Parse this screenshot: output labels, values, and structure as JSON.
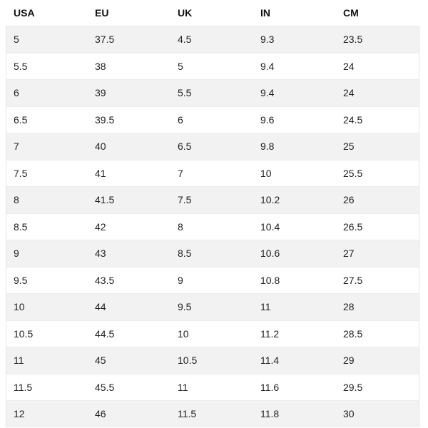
{
  "table": {
    "headers": [
      "USA",
      "EU",
      "UK",
      "IN",
      "CM"
    ],
    "rows": [
      [
        "5",
        "37.5",
        "4.5",
        "9.3",
        "23.5"
      ],
      [
        "5.5",
        "38",
        "5",
        "9.4",
        "24"
      ],
      [
        "6",
        "39",
        "5.5",
        "9.4",
        "24"
      ],
      [
        "6.5",
        "39.5",
        "6",
        "9.6",
        "24.5"
      ],
      [
        "7",
        "40",
        "6.5",
        "9.8",
        "25"
      ],
      [
        "7.5",
        "41",
        "7",
        "10",
        "25.5"
      ],
      [
        "8",
        "41.5",
        "7.5",
        "10.2",
        "26"
      ],
      [
        "8.5",
        "42",
        "8",
        "10.4",
        "26.5"
      ],
      [
        "9",
        "43",
        "8.5",
        "10.6",
        "27"
      ],
      [
        "9.5",
        "43.5",
        "9",
        "10.8",
        "27.5"
      ],
      [
        "10",
        "44",
        "9.5",
        "11",
        "28"
      ],
      [
        "10.5",
        "44.5",
        "10",
        "11.2",
        "28.5"
      ],
      [
        "11",
        "45",
        "10.5",
        "11.4",
        "29"
      ],
      [
        "11.5",
        "45.5",
        "11",
        "11.6",
        "29.5"
      ],
      [
        "12",
        "46",
        "11.5",
        "11.8",
        "30"
      ]
    ]
  }
}
